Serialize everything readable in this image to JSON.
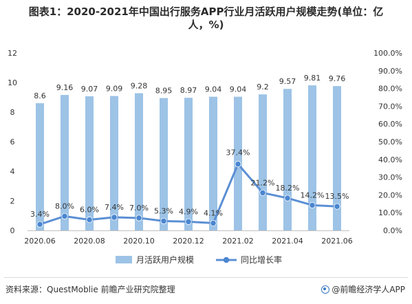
{
  "title_line1": "图表1：2020-2021年中国出行服务APP行业月活跃用户规模走势(单位：亿",
  "title_line2": "人，%)",
  "source": "资料来源：QuestMoblie 前瞻产业研究院整理",
  "brand": "@前瞻经济学人APP",
  "colors": {
    "bar": "#9dc3e6",
    "line": "#5b8fd4",
    "marker": "#4a86d0"
  },
  "chart_data": {
    "type": "bar+line",
    "categories": [
      "2020.06",
      "2020.07",
      "2020.08",
      "2020.09",
      "2020.10",
      "2020.11",
      "2020.12",
      "2021.01",
      "2021.02",
      "2021.03",
      "2021.04",
      "2021.05",
      "2021.06"
    ],
    "x_tick_labels": [
      "2020.06",
      "",
      "2020.08",
      "",
      "2020.10",
      "",
      "2020.12",
      "",
      "2021.02",
      "",
      "2021.04",
      "",
      "2021.06"
    ],
    "series": [
      {
        "name": "月活跃用户规模",
        "type": "bar",
        "axis": "left",
        "values": [
          8.6,
          9.16,
          9.07,
          9.09,
          9.28,
          8.95,
          8.97,
          9.04,
          9.04,
          9.2,
          9.57,
          9.81,
          9.76
        ],
        "labels": [
          "8.6",
          "9.16",
          "9.07",
          "9.09",
          "9.28",
          "8.95",
          "8.97",
          "9.04",
          "9.04",
          "9.2",
          "9.57",
          "9.81",
          "9.76"
        ]
      },
      {
        "name": "同比增长率",
        "type": "line",
        "axis": "right",
        "values": [
          3.4,
          8.0,
          6.0,
          7.4,
          7.0,
          5.3,
          4.9,
          4.1,
          37.4,
          21.2,
          18.2,
          14.2,
          13.5
        ],
        "labels": [
          "3.4%",
          "8.0%",
          "6.0%",
          "7.4%",
          "7.0%",
          "5.3%",
          "4.9%",
          "4.1%",
          "37.4%",
          "21.2%",
          "18.2%",
          "14.2%",
          "13.5%"
        ]
      }
    ],
    "y_left": {
      "min": 0,
      "max": 12,
      "ticks": [
        "0",
        "2",
        "4",
        "6",
        "8",
        "10",
        "12"
      ]
    },
    "y_right": {
      "min": 0,
      "max": 100,
      "ticks": [
        "0.0%",
        "10.0%",
        "20.0%",
        "30.0%",
        "40.0%",
        "50.0%",
        "60.0%",
        "70.0%",
        "80.0%",
        "90.0%",
        "100.0%"
      ]
    },
    "legend": [
      "月活跃用户规模",
      "同比增长率"
    ],
    "legend_position": "bottom",
    "grid": false
  }
}
